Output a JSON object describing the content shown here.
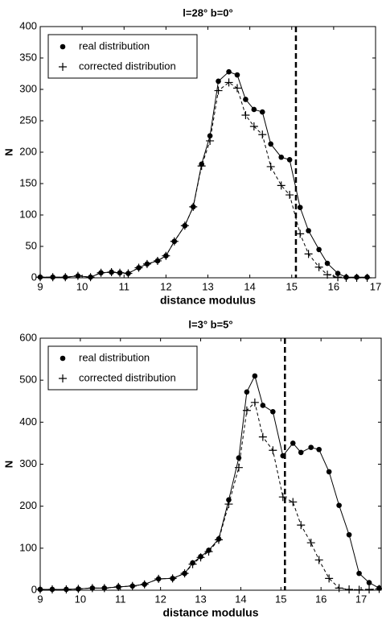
{
  "chart_data": [
    {
      "type": "line",
      "title": "l=28° b=0°",
      "xlabel": "distance modulus",
      "ylabel": "N",
      "xlim": [
        9,
        17
      ],
      "xticks": [
        9,
        10,
        11,
        12,
        13,
        14,
        15,
        16,
        17
      ],
      "ylim": [
        0,
        400
      ],
      "yticks": [
        0,
        50,
        100,
        150,
        200,
        250,
        300,
        350,
        400
      ],
      "vline": 15.1,
      "legend": "upper left",
      "x": [
        9.0,
        9.3,
        9.6,
        9.9,
        10.2,
        10.45,
        10.7,
        10.9,
        11.1,
        11.35,
        11.55,
        11.8,
        12.0,
        12.2,
        12.45,
        12.65,
        12.85,
        13.05,
        13.25,
        13.5,
        13.7,
        13.9,
        14.1,
        14.3,
        14.5,
        14.75,
        14.95,
        15.2,
        15.4,
        15.65,
        15.85,
        16.1,
        16.3,
        16.55,
        16.8
      ],
      "series": [
        {
          "name": "real distribution",
          "color": "#000000",
          "marker": "circle",
          "dash": false,
          "values": [
            1,
            1,
            1,
            3,
            1,
            8,
            9,
            8,
            7,
            16,
            22,
            27,
            35,
            58,
            83,
            113,
            181,
            226,
            313,
            328,
            323,
            284,
            268,
            264,
            213,
            192,
            188,
            112,
            75,
            45,
            23,
            7,
            1,
            1,
            1
          ]
        },
        {
          "name": "corrected distribution",
          "color": "#000000",
          "marker": "plus",
          "dash": true,
          "values": [
            1,
            1,
            1,
            3,
            1,
            8,
            9,
            8,
            7,
            16,
            22,
            27,
            35,
            58,
            83,
            113,
            178,
            218,
            298,
            311,
            302,
            259,
            241,
            228,
            177,
            147,
            132,
            70,
            38,
            17,
            5,
            1,
            0,
            0,
            0
          ]
        }
      ]
    },
    {
      "type": "line",
      "title": "l=3° b=5°",
      "xlabel": "distance modulus",
      "ylabel": "N",
      "xlim": [
        9,
        17.5
      ],
      "xticks": [
        9,
        10,
        11,
        12,
        13,
        14,
        15,
        16,
        17
      ],
      "ylim": [
        0,
        600
      ],
      "yticks": [
        0,
        100,
        200,
        300,
        400,
        500,
        600
      ],
      "vline": 15.1,
      "legend": "upper left",
      "x": [
        9.0,
        9.3,
        9.65,
        9.95,
        10.3,
        10.6,
        10.95,
        11.3,
        11.6,
        11.95,
        12.3,
        12.6,
        12.8,
        13.0,
        13.2,
        13.45,
        13.7,
        13.95,
        14.15,
        14.35,
        14.55,
        14.8,
        15.05,
        15.3,
        15.5,
        15.75,
        15.95,
        16.2,
        16.45,
        16.7,
        16.95,
        17.2,
        17.45
      ],
      "series": [
        {
          "name": "real distribution",
          "color": "#000000",
          "marker": "circle",
          "dash": false,
          "values": [
            2,
            2,
            2,
            3,
            5,
            5,
            8,
            10,
            14,
            27,
            28,
            40,
            65,
            80,
            95,
            122,
            215,
            315,
            472,
            510,
            440,
            425,
            320,
            350,
            328,
            340,
            335,
            282,
            202,
            132,
            40,
            18,
            5
          ]
        },
        {
          "name": "corrected distribution",
          "color": "#000000",
          "marker": "plus",
          "dash": true,
          "values": [
            2,
            2,
            2,
            3,
            5,
            5,
            8,
            10,
            14,
            27,
            28,
            40,
            62,
            78,
            92,
            120,
            205,
            292,
            428,
            447,
            365,
            333,
            222,
            210,
            155,
            113,
            72,
            28,
            5,
            2,
            1,
            2,
            3
          ]
        }
      ]
    }
  ]
}
